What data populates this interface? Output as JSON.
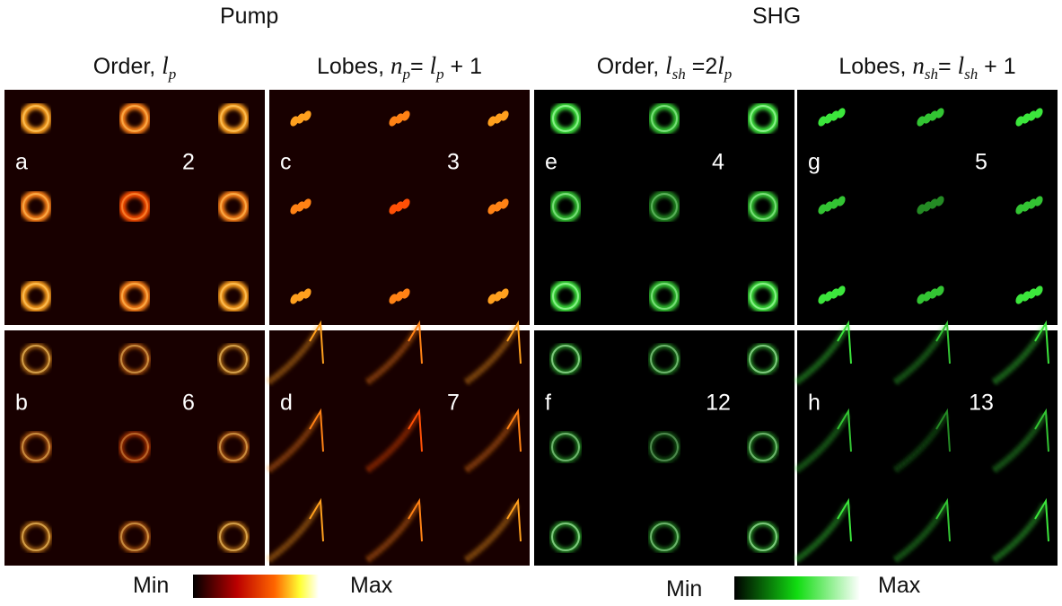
{
  "header": {
    "left": "Pump",
    "right": "SHG"
  },
  "columns": [
    [
      "Order, ",
      "l",
      "p"
    ],
    [
      "Lobes, ",
      "n",
      "p",
      "= ",
      "l",
      "p",
      " + 1"
    ],
    [
      "Order, ",
      "l",
      "sh",
      " =2",
      "l",
      "p"
    ],
    [
      "Lobes, ",
      "n",
      "sh",
      "= ",
      "l",
      "sh",
      " + 1"
    ]
  ],
  "panels": [
    [
      {
        "letter": "a",
        "number": 2
      },
      {
        "letter": "c",
        "number": 3
      },
      {
        "letter": "e",
        "number": 4
      },
      {
        "letter": "g",
        "number": 5
      }
    ],
    [
      {
        "letter": "b",
        "number": 6
      },
      {
        "letter": "d",
        "number": 7
      },
      {
        "letter": "f",
        "number": 12
      },
      {
        "letter": "h",
        "number": 13
      }
    ]
  ],
  "colorbars": [
    {
      "min": "Min",
      "max": "Max"
    },
    {
      "min": "Min",
      "max": "Max"
    }
  ]
}
